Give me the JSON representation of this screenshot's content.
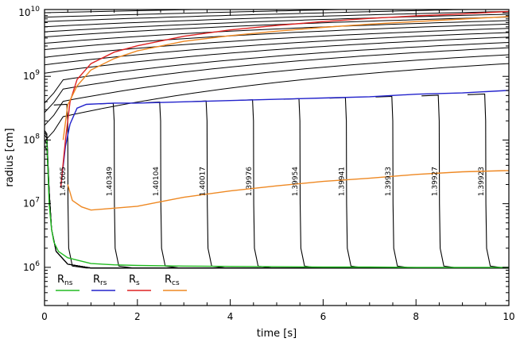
{
  "chart_data": {
    "type": "line",
    "title": "",
    "xlabel": "time [s]",
    "ylabel": "radius [cm]",
    "xlim": [
      0,
      10
    ],
    "ylim_log10": [
      5.4,
      10.05
    ],
    "log_y": true,
    "x_ticks": [
      0,
      2,
      4,
      6,
      8,
      10
    ],
    "y_ticks": [
      {
        "exp": 6,
        "label": "10",
        "sup": "6"
      },
      {
        "exp": 7,
        "label": "10",
        "sup": "7"
      },
      {
        "exp": 8,
        "label": "10",
        "sup": "8"
      },
      {
        "exp": 9,
        "label": "10",
        "sup": "9"
      },
      {
        "exp": 10,
        "label": "10",
        "sup": "10"
      }
    ],
    "grid": false,
    "legend": {
      "placement": "bottom-left",
      "entries": [
        {
          "label": "R",
          "sub": "ns",
          "color": "#22bb22"
        },
        {
          "label": "R",
          "sub": "rs",
          "color": "#2222cc"
        },
        {
          "label": "R",
          "sub": "s",
          "color": "#dd2222"
        },
        {
          "label": "R",
          "sub": "cs",
          "color": "#ee8822"
        }
      ]
    },
    "mass_labels": [
      {
        "t": 0.5,
        "text": "1.41605"
      },
      {
        "t": 1.5,
        "text": "1.40349"
      },
      {
        "t": 2.5,
        "text": "1.40104"
      },
      {
        "t": 3.5,
        "text": "1.40017"
      },
      {
        "t": 4.5,
        "text": "1.39976"
      },
      {
        "t": 5.5,
        "text": "1.39954"
      },
      {
        "t": 6.5,
        "text": "1.39941"
      },
      {
        "t": 7.5,
        "text": "1.39933"
      },
      {
        "t": 8.5,
        "text": "1.39927"
      },
      {
        "t": 9.5,
        "text": "1.39923"
      }
    ],
    "series": [
      {
        "name": "R_ns",
        "color": "#22bb22",
        "points": [
          [
            0.05,
            8.0
          ],
          [
            0.1,
            7.0
          ],
          [
            0.15,
            6.6
          ],
          [
            0.2,
            6.4
          ],
          [
            0.3,
            6.25
          ],
          [
            0.5,
            6.15
          ],
          [
            1.0,
            6.06
          ],
          [
            1.5,
            6.04
          ],
          [
            2,
            6.03
          ],
          [
            3,
            6.02
          ],
          [
            4,
            6.015
          ],
          [
            5,
            6.01
          ],
          [
            6,
            6.005
          ],
          [
            7,
            6.005
          ],
          [
            8,
            6.0
          ],
          [
            9,
            6.0
          ],
          [
            10,
            6.0
          ]
        ]
      },
      {
        "name": "R_rs",
        "color": "#2222cc",
        "points": [
          [
            0.35,
            7.25
          ],
          [
            0.45,
            7.9
          ],
          [
            0.55,
            8.25
          ],
          [
            0.7,
            8.5
          ],
          [
            0.9,
            8.56
          ],
          [
            1.2,
            8.57
          ],
          [
            1.5,
            8.58
          ],
          [
            2,
            8.58
          ],
          [
            3,
            8.6
          ],
          [
            4,
            8.62
          ],
          [
            5,
            8.64
          ],
          [
            6,
            8.66
          ],
          [
            7,
            8.68
          ],
          [
            8,
            8.72
          ],
          [
            9,
            8.74
          ],
          [
            10,
            8.78
          ]
        ]
      },
      {
        "name": "R_s",
        "color": "#dd2222",
        "points": [
          [
            0.35,
            7.25
          ],
          [
            0.45,
            8.0
          ],
          [
            0.55,
            8.6
          ],
          [
            0.7,
            8.95
          ],
          [
            1.0,
            9.2
          ],
          [
            1.5,
            9.38
          ],
          [
            2,
            9.48
          ],
          [
            3,
            9.63
          ],
          [
            4,
            9.73
          ],
          [
            5,
            9.8
          ],
          [
            6,
            9.86
          ],
          [
            7,
            9.91
          ],
          [
            8,
            9.95
          ],
          [
            9,
            9.98
          ],
          [
            10,
            10.02
          ]
        ]
      },
      {
        "name": "R_cs",
        "color": "#ee8822",
        "points": [
          [
            0.5,
            7.3
          ],
          [
            0.6,
            7.05
          ],
          [
            0.8,
            6.95
          ],
          [
            1.0,
            6.9
          ],
          [
            1.5,
            6.93
          ],
          [
            2,
            6.96
          ],
          [
            2.5,
            7.03
          ],
          [
            3,
            7.1
          ],
          [
            4,
            7.2
          ],
          [
            5,
            7.28
          ],
          [
            6,
            7.35
          ],
          [
            7,
            7.4
          ],
          [
            8,
            7.46
          ],
          [
            9,
            7.5
          ],
          [
            10,
            7.52
          ]
        ]
      },
      {
        "name": "R_cs outer",
        "color": "#ee8822",
        "points": [
          [
            0.4,
            8.0
          ],
          [
            0.5,
            8.55
          ],
          [
            0.7,
            8.85
          ],
          [
            1.0,
            9.1
          ],
          [
            1.5,
            9.28
          ],
          [
            2,
            9.4
          ],
          [
            3,
            9.55
          ],
          [
            4,
            9.64
          ],
          [
            5,
            9.71
          ],
          [
            6,
            9.77
          ],
          [
            7,
            9.82
          ],
          [
            8,
            9.86
          ],
          [
            9,
            9.9
          ],
          [
            10,
            9.94
          ]
        ]
      }
    ]
  }
}
